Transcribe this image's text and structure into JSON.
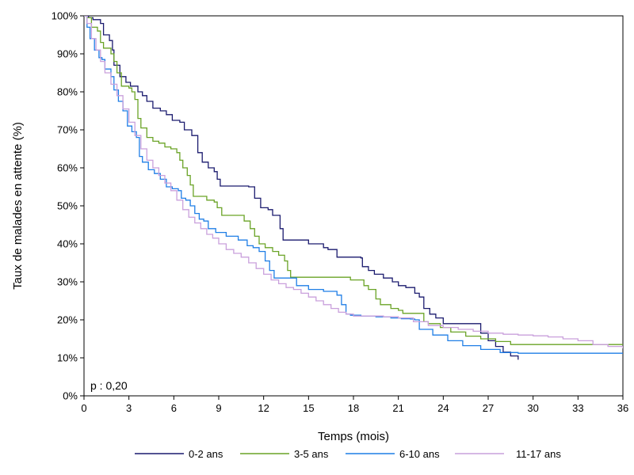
{
  "chart_data": {
    "type": "line",
    "step": true,
    "title": "",
    "xlabel": "Temps (mois)",
    "ylabel": "Taux de malades en attente (%)",
    "xlim": [
      0,
      36
    ],
    "ylim": [
      0,
      100
    ],
    "xticks": [
      0,
      3,
      6,
      9,
      12,
      15,
      18,
      21,
      24,
      27,
      30,
      33,
      36
    ],
    "yticks": [
      {
        "value": 0,
        "label": "0%"
      },
      {
        "value": 10,
        "label": "10%"
      },
      {
        "value": 20,
        "label": "20%"
      },
      {
        "value": 30,
        "label": "30%"
      },
      {
        "value": 40,
        "label": "40%"
      },
      {
        "value": 50,
        "label": "50%"
      },
      {
        "value": 60,
        "label": "60%"
      },
      {
        "value": 70,
        "label": "70%"
      },
      {
        "value": 80,
        "label": "80%"
      },
      {
        "value": 90,
        "label": "90%"
      },
      {
        "value": 100,
        "label": "100%"
      }
    ],
    "grid": false,
    "legend_position": "bottom",
    "annotation": "p : 0,20",
    "series": [
      {
        "name": "0-2 ans",
        "color": "#1a1a6e",
        "points": [
          [
            0,
            100
          ],
          [
            0.3,
            99.5
          ],
          [
            0.6,
            99
          ],
          [
            1.1,
            98
          ],
          [
            1.3,
            95
          ],
          [
            1.7,
            93.5
          ],
          [
            1.9,
            91
          ],
          [
            2,
            87
          ],
          [
            2.4,
            84
          ],
          [
            2.8,
            82.5
          ],
          [
            3.1,
            81.5
          ],
          [
            3.6,
            80
          ],
          [
            3.9,
            79
          ],
          [
            4.2,
            77.5
          ],
          [
            4.6,
            75.7
          ],
          [
            5.1,
            75
          ],
          [
            5.5,
            74
          ],
          [
            5.9,
            72.5
          ],
          [
            6.4,
            72
          ],
          [
            6.7,
            70
          ],
          [
            7.2,
            68.5
          ],
          [
            7.6,
            64
          ],
          [
            7.9,
            61.5
          ],
          [
            8.3,
            60
          ],
          [
            8.7,
            59
          ],
          [
            8.9,
            57
          ],
          [
            9.1,
            55.2
          ],
          [
            10.5,
            55.2
          ],
          [
            11,
            55
          ],
          [
            11.4,
            52
          ],
          [
            11.8,
            49.5
          ],
          [
            12.3,
            49
          ],
          [
            12.6,
            47.5
          ],
          [
            13,
            47.5
          ],
          [
            13.1,
            44
          ],
          [
            13.3,
            41
          ],
          [
            14,
            41
          ],
          [
            15,
            40
          ],
          [
            16,
            39
          ],
          [
            16.3,
            38.5
          ],
          [
            16.9,
            36.5
          ],
          [
            18,
            36.5
          ],
          [
            18.5,
            36.3
          ],
          [
            18.6,
            34
          ],
          [
            19,
            33
          ],
          [
            19.4,
            32
          ],
          [
            20,
            31
          ],
          [
            20.6,
            30
          ],
          [
            21,
            29
          ],
          [
            21.5,
            28.5
          ],
          [
            22.1,
            27
          ],
          [
            22.4,
            26
          ],
          [
            22.7,
            23
          ],
          [
            23.1,
            21.5
          ],
          [
            23.5,
            20.5
          ],
          [
            24,
            19
          ],
          [
            24.5,
            19
          ],
          [
            26,
            19
          ],
          [
            26.5,
            16.5
          ],
          [
            27,
            14.5
          ],
          [
            27.5,
            13
          ],
          [
            28,
            11.5
          ],
          [
            28.5,
            10.5
          ],
          [
            29,
            9.5
          ]
        ]
      },
      {
        "name": "3-5 ans",
        "color": "#6aa326",
        "points": [
          [
            0,
            100
          ],
          [
            0.2,
            99.5
          ],
          [
            0.5,
            97
          ],
          [
            0.9,
            96
          ],
          [
            1.1,
            93
          ],
          [
            1.3,
            91.5
          ],
          [
            1.8,
            90
          ],
          [
            2,
            88
          ],
          [
            2.2,
            85
          ],
          [
            2.5,
            81.5
          ],
          [
            3,
            81
          ],
          [
            3.2,
            80
          ],
          [
            3.4,
            78
          ],
          [
            3.6,
            73
          ],
          [
            3.8,
            70.5
          ],
          [
            4.2,
            68
          ],
          [
            4.6,
            67
          ],
          [
            5,
            66.5
          ],
          [
            5.4,
            65.5
          ],
          [
            5.8,
            65
          ],
          [
            6.2,
            64
          ],
          [
            6.4,
            62
          ],
          [
            6.6,
            60
          ],
          [
            6.9,
            58
          ],
          [
            7.1,
            55.5
          ],
          [
            7.3,
            52.5
          ],
          [
            8.2,
            51.5
          ],
          [
            8.7,
            51
          ],
          [
            8.9,
            49.5
          ],
          [
            9.2,
            47.5
          ],
          [
            10.4,
            47.5
          ],
          [
            10.7,
            46
          ],
          [
            11.1,
            44
          ],
          [
            11.4,
            42
          ],
          [
            11.7,
            40
          ],
          [
            12.1,
            39
          ],
          [
            12.6,
            38
          ],
          [
            13,
            37
          ],
          [
            13.4,
            35.5
          ],
          [
            13.6,
            33
          ],
          [
            13.8,
            31.2
          ],
          [
            17.2,
            31.2
          ],
          [
            17.8,
            30.5
          ],
          [
            18.7,
            29
          ],
          [
            19,
            28
          ],
          [
            19.5,
            25.5
          ],
          [
            19.8,
            24
          ],
          [
            20.5,
            23
          ],
          [
            21,
            22.5
          ],
          [
            21.3,
            21.7
          ],
          [
            22.4,
            21.7
          ],
          [
            22.7,
            19.5
          ],
          [
            23,
            19
          ],
          [
            23.8,
            18
          ],
          [
            24.5,
            16.8
          ],
          [
            25.5,
            15.7
          ],
          [
            26.5,
            15
          ],
          [
            27.5,
            14.3
          ],
          [
            28.5,
            13.5
          ],
          [
            36,
            13.5
          ]
        ]
      },
      {
        "name": "6-10 ans",
        "color": "#1f7ee6",
        "points": [
          [
            0,
            100
          ],
          [
            0.2,
            97
          ],
          [
            0.4,
            94
          ],
          [
            0.7,
            91
          ],
          [
            1,
            89
          ],
          [
            1.2,
            88.5
          ],
          [
            1.4,
            86
          ],
          [
            1.8,
            84
          ],
          [
            2,
            80.5
          ],
          [
            2.3,
            77.5
          ],
          [
            2.6,
            75
          ],
          [
            2.9,
            71
          ],
          [
            3.2,
            69.5
          ],
          [
            3.5,
            68
          ],
          [
            3.7,
            63
          ],
          [
            3.9,
            61.5
          ],
          [
            4.3,
            59.5
          ],
          [
            4.7,
            58.5
          ],
          [
            5.1,
            57
          ],
          [
            5.5,
            55
          ],
          [
            5.9,
            54.5
          ],
          [
            6.3,
            54
          ],
          [
            6.5,
            52
          ],
          [
            6.8,
            51.5
          ],
          [
            7.1,
            50
          ],
          [
            7.4,
            48
          ],
          [
            7.7,
            46.5
          ],
          [
            8,
            46
          ],
          [
            8.3,
            44
          ],
          [
            8.8,
            43
          ],
          [
            9.5,
            42
          ],
          [
            10.3,
            41
          ],
          [
            10.9,
            39.5
          ],
          [
            11.3,
            39
          ],
          [
            11.7,
            38
          ],
          [
            12.1,
            35.5
          ],
          [
            12.4,
            33
          ],
          [
            12.7,
            31
          ],
          [
            13.6,
            31
          ],
          [
            14.2,
            29
          ],
          [
            15,
            28
          ],
          [
            16,
            27.5
          ],
          [
            16.9,
            26.5
          ],
          [
            17.2,
            24
          ],
          [
            17.5,
            21.5
          ],
          [
            17.8,
            21.2
          ],
          [
            18.5,
            21
          ],
          [
            19.5,
            20.8
          ],
          [
            20.5,
            20.5
          ],
          [
            21.2,
            20.3
          ],
          [
            21.8,
            20.2
          ],
          [
            22.1,
            20
          ],
          [
            22.4,
            17.5
          ],
          [
            23.3,
            16
          ],
          [
            24.3,
            14.5
          ],
          [
            25.3,
            13.2
          ],
          [
            26.5,
            12.2
          ],
          [
            27.8,
            11.4
          ],
          [
            29,
            11.2
          ],
          [
            36,
            11.2
          ]
        ]
      },
      {
        "name": "11-17 ans",
        "color": "#c9a0dc",
        "points": [
          [
            0,
            100
          ],
          [
            0.2,
            98
          ],
          [
            0.5,
            94
          ],
          [
            0.8,
            91
          ],
          [
            1.1,
            88
          ],
          [
            1.4,
            85
          ],
          [
            1.8,
            82
          ],
          [
            2.2,
            79
          ],
          [
            2.6,
            75.5
          ],
          [
            3,
            72
          ],
          [
            3.4,
            68.5
          ],
          [
            3.8,
            65
          ],
          [
            4.2,
            62
          ],
          [
            4.6,
            60
          ],
          [
            5,
            58
          ],
          [
            5.4,
            56
          ],
          [
            5.8,
            54
          ],
          [
            6.2,
            51.5
          ],
          [
            6.6,
            49
          ],
          [
            7,
            47
          ],
          [
            7.4,
            45.5
          ],
          [
            7.8,
            44
          ],
          [
            8.2,
            42.5
          ],
          [
            8.6,
            41.5
          ],
          [
            9,
            40
          ],
          [
            9.5,
            38.5
          ],
          [
            10,
            37.5
          ],
          [
            10.5,
            36.5
          ],
          [
            11,
            35
          ],
          [
            11.5,
            33.5
          ],
          [
            12,
            32
          ],
          [
            12.5,
            30.5
          ],
          [
            13,
            29.5
          ],
          [
            13.5,
            28.5
          ],
          [
            14,
            28
          ],
          [
            14.5,
            27
          ],
          [
            15,
            26
          ],
          [
            15.5,
            25
          ],
          [
            16,
            24
          ],
          [
            16.5,
            23
          ],
          [
            17,
            22
          ],
          [
            17.5,
            21.5
          ],
          [
            18,
            21
          ],
          [
            19,
            21
          ],
          [
            20,
            20.8
          ],
          [
            21,
            20.5
          ],
          [
            22,
            19.5
          ],
          [
            23,
            18.5
          ],
          [
            24,
            18
          ],
          [
            25,
            17.5
          ],
          [
            26,
            17
          ],
          [
            27,
            16.5
          ],
          [
            28,
            16.2
          ],
          [
            29,
            16
          ],
          [
            30,
            15.8
          ],
          [
            31,
            15.5
          ],
          [
            32,
            15
          ],
          [
            33,
            14.5
          ],
          [
            34,
            13.5
          ],
          [
            35,
            13
          ],
          [
            36,
            12.5
          ]
        ]
      }
    ]
  }
}
